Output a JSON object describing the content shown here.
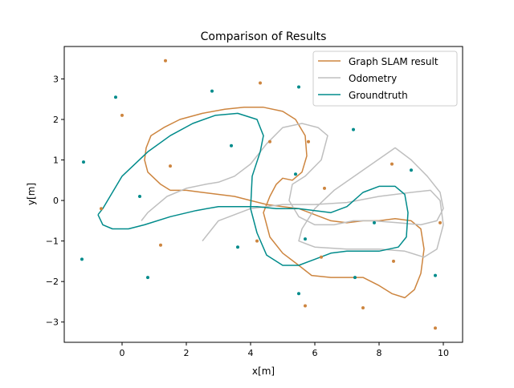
{
  "chart_data": {
    "type": "line",
    "title": "Comparison of Results",
    "xlabel": "x[m]",
    "ylabel": "y[m]",
    "xlim": [
      -1.8,
      10.6
    ],
    "ylim": [
      -3.5,
      3.8
    ],
    "xticks": [
      0,
      2,
      4,
      6,
      8,
      10
    ],
    "yticks": [
      -3,
      -2,
      -1,
      0,
      1,
      2,
      3
    ],
    "grid": false,
    "legend_position": "top-right",
    "series": [
      {
        "name": "Graph SLAM result",
        "color": "#cd853f",
        "points": [
          [
            1.5,
            0.25
          ],
          [
            1.2,
            0.4
          ],
          [
            0.8,
            0.7
          ],
          [
            0.7,
            1.0
          ],
          [
            0.75,
            1.3
          ],
          [
            0.9,
            1.6
          ],
          [
            1.3,
            1.8
          ],
          [
            1.8,
            2.0
          ],
          [
            2.5,
            2.15
          ],
          [
            3.2,
            2.25
          ],
          [
            3.8,
            2.3
          ],
          [
            4.4,
            2.3
          ],
          [
            5.0,
            2.2
          ],
          [
            5.4,
            2.0
          ],
          [
            5.7,
            1.6
          ],
          [
            5.75,
            1.1
          ],
          [
            5.6,
            0.7
          ],
          [
            5.3,
            0.5
          ],
          [
            5.0,
            0.55
          ],
          [
            4.8,
            0.4
          ],
          [
            4.6,
            0.1
          ],
          [
            4.4,
            -0.3
          ],
          [
            4.6,
            -0.9
          ],
          [
            5.0,
            -1.3
          ],
          [
            5.5,
            -1.6
          ],
          [
            5.9,
            -1.85
          ],
          [
            6.5,
            -1.9
          ],
          [
            7.0,
            -1.9
          ],
          [
            7.5,
            -1.9
          ],
          [
            8.0,
            -2.1
          ],
          [
            8.4,
            -2.3
          ],
          [
            8.8,
            -2.4
          ],
          [
            9.1,
            -2.2
          ],
          [
            9.3,
            -1.8
          ],
          [
            9.4,
            -1.2
          ],
          [
            9.3,
            -0.7
          ],
          [
            9.0,
            -0.5
          ],
          [
            8.5,
            -0.45
          ],
          [
            8.0,
            -0.5
          ],
          [
            7.5,
            -0.5
          ],
          [
            7.0,
            -0.55
          ],
          [
            6.5,
            -0.5
          ],
          [
            6.0,
            -0.35
          ],
          [
            5.5,
            -0.2
          ],
          [
            5.0,
            -0.15
          ],
          [
            4.5,
            -0.1
          ],
          [
            4.0,
            0.0
          ],
          [
            3.5,
            0.1
          ],
          [
            3.0,
            0.15
          ],
          [
            2.5,
            0.2
          ],
          [
            2.0,
            0.25
          ],
          [
            1.5,
            0.25
          ]
        ]
      },
      {
        "name": "Odometry",
        "color": "#bfbfbf",
        "points": [
          [
            0.6,
            -0.5
          ],
          [
            0.8,
            -0.3
          ],
          [
            1.4,
            0.1
          ],
          [
            2.0,
            0.3
          ],
          [
            2.6,
            0.4
          ],
          [
            3.0,
            0.45
          ],
          [
            3.5,
            0.6
          ],
          [
            4.0,
            0.9
          ],
          [
            4.5,
            1.4
          ],
          [
            5.0,
            1.8
          ],
          [
            5.6,
            1.9
          ],
          [
            6.1,
            1.8
          ],
          [
            6.4,
            1.6
          ],
          [
            6.2,
            1.0
          ],
          [
            5.7,
            0.6
          ],
          [
            5.3,
            0.4
          ],
          [
            5.2,
            0.0
          ],
          [
            5.5,
            -0.4
          ],
          [
            6.0,
            -0.6
          ],
          [
            6.6,
            -0.6
          ],
          [
            7.2,
            -0.5
          ],
          [
            7.8,
            -0.5
          ],
          [
            8.6,
            -0.55
          ],
          [
            9.3,
            -0.6
          ],
          [
            9.8,
            -0.5
          ],
          [
            10.0,
            -0.2
          ],
          [
            9.9,
            0.2
          ],
          [
            9.5,
            0.6
          ],
          [
            9.0,
            1.0
          ],
          [
            8.5,
            1.3
          ],
          [
            6.6,
            0.25
          ],
          [
            6.0,
            -0.2
          ],
          [
            5.6,
            -0.7
          ],
          [
            5.5,
            -1.0
          ],
          [
            6.0,
            -1.15
          ],
          [
            7.0,
            -1.2
          ],
          [
            8.0,
            -1.2
          ],
          [
            8.8,
            -1.25
          ],
          [
            9.4,
            -1.4
          ],
          [
            9.8,
            -1.2
          ],
          [
            10.0,
            -0.6
          ],
          [
            9.9,
            0.0
          ],
          [
            9.6,
            0.25
          ],
          [
            9.0,
            0.2
          ],
          [
            8.0,
            0.1
          ],
          [
            7.0,
            -0.05
          ],
          [
            6.0,
            -0.1
          ],
          [
            5.0,
            -0.1
          ],
          [
            4.0,
            -0.2
          ],
          [
            3.0,
            -0.5
          ],
          [
            2.5,
            -1.0
          ]
        ]
      },
      {
        "name": "Groundtruth",
        "color": "#008b8b",
        "points": [
          [
            -0.75,
            -0.35
          ],
          [
            -0.6,
            -0.6
          ],
          [
            -0.3,
            -0.7
          ],
          [
            0.2,
            -0.7
          ],
          [
            0.7,
            -0.6
          ],
          [
            1.5,
            -0.4
          ],
          [
            2.3,
            -0.25
          ],
          [
            3.0,
            -0.15
          ],
          [
            3.6,
            -0.15
          ],
          [
            4.2,
            -0.15
          ],
          [
            4.8,
            -0.2
          ],
          [
            5.5,
            -0.2
          ],
          [
            6.0,
            -0.25
          ],
          [
            6.5,
            -0.3
          ],
          [
            7.0,
            -0.15
          ],
          [
            7.5,
            0.2
          ],
          [
            8.0,
            0.35
          ],
          [
            8.5,
            0.35
          ],
          [
            8.8,
            0.15
          ],
          [
            8.9,
            -0.3
          ],
          [
            8.85,
            -0.9
          ],
          [
            8.6,
            -1.15
          ],
          [
            8.0,
            -1.25
          ],
          [
            7.0,
            -1.25
          ],
          [
            6.5,
            -1.3
          ],
          [
            6.0,
            -1.45
          ],
          [
            5.5,
            -1.6
          ],
          [
            5.0,
            -1.6
          ],
          [
            4.5,
            -1.35
          ],
          [
            4.2,
            -0.8
          ],
          [
            4.0,
            -0.2
          ],
          [
            4.05,
            0.6
          ],
          [
            4.3,
            1.2
          ],
          [
            4.4,
            1.6
          ],
          [
            4.2,
            2.0
          ],
          [
            3.6,
            2.15
          ],
          [
            2.9,
            2.1
          ],
          [
            2.2,
            1.9
          ],
          [
            1.5,
            1.6
          ],
          [
            0.8,
            1.2
          ],
          [
            0.0,
            0.6
          ],
          [
            -0.6,
            -0.2
          ],
          [
            -0.75,
            -0.35
          ]
        ]
      }
    ],
    "landmarks": [
      {
        "color": "#cd853f",
        "points": [
          [
            1.35,
            3.45
          ],
          [
            4.3,
            2.9
          ],
          [
            0.0,
            2.1
          ],
          [
            5.8,
            1.45
          ],
          [
            4.6,
            1.45
          ],
          [
            1.5,
            0.85
          ],
          [
            6.3,
            0.3
          ],
          [
            8.4,
            0.9
          ],
          [
            -0.65,
            -0.2
          ],
          [
            4.2,
            -1.0
          ],
          [
            1.2,
            -1.1
          ],
          [
            6.2,
            -1.4
          ],
          [
            8.45,
            -1.5
          ],
          [
            5.7,
            -2.6
          ],
          [
            7.5,
            -2.65
          ],
          [
            9.75,
            -3.15
          ],
          [
            9.9,
            -0.55
          ]
        ]
      },
      {
        "color": "#008b8b",
        "points": [
          [
            -0.2,
            2.55
          ],
          [
            2.8,
            2.7
          ],
          [
            5.5,
            2.8
          ],
          [
            7.2,
            1.75
          ],
          [
            3.4,
            1.35
          ],
          [
            -1.2,
            0.95
          ],
          [
            5.4,
            0.65
          ],
          [
            9.0,
            0.75
          ],
          [
            0.55,
            0.1
          ],
          [
            7.85,
            -0.55
          ],
          [
            5.7,
            -0.95
          ],
          [
            3.6,
            -1.15
          ],
          [
            -1.25,
            -1.45
          ],
          [
            0.8,
            -1.9
          ],
          [
            7.25,
            -1.9
          ],
          [
            9.75,
            -1.85
          ],
          [
            5.5,
            -2.3
          ]
        ]
      }
    ]
  }
}
